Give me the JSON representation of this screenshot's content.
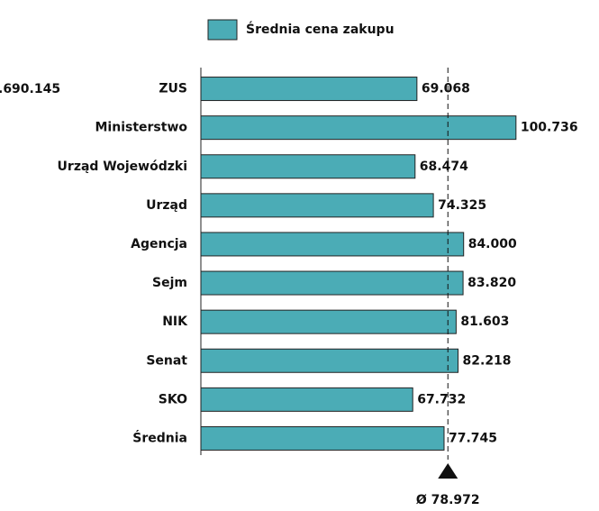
{
  "chart_data": {
    "type": "bar",
    "orientation": "horizontal",
    "legend": "top",
    "series": [
      {
        "name": "Średnia cena zakupu",
        "color": "#4bacb6",
        "values": [
          69068,
          100736,
          68474,
          74325,
          84000,
          83820,
          81603,
          82218,
          67732,
          77745
        ],
        "value_labels": [
          "69.068",
          "100.736",
          "68.474",
          "74.325",
          "84.000",
          "83.820",
          "81.603",
          "82.218",
          "67.732",
          "77.745"
        ]
      }
    ],
    "categories": [
      "ZUS",
      "Ministerstwo",
      "Urząd Wojewódzki",
      "Urząd",
      "Agencja",
      "Sejm",
      "NIK",
      "Senat",
      "SKO",
      "Średnia"
    ],
    "xlim": [
      0,
      110000
    ],
    "average": {
      "value": 78972,
      "label": "Ø 78.972"
    },
    "clipped_label": ".690.145"
  }
}
